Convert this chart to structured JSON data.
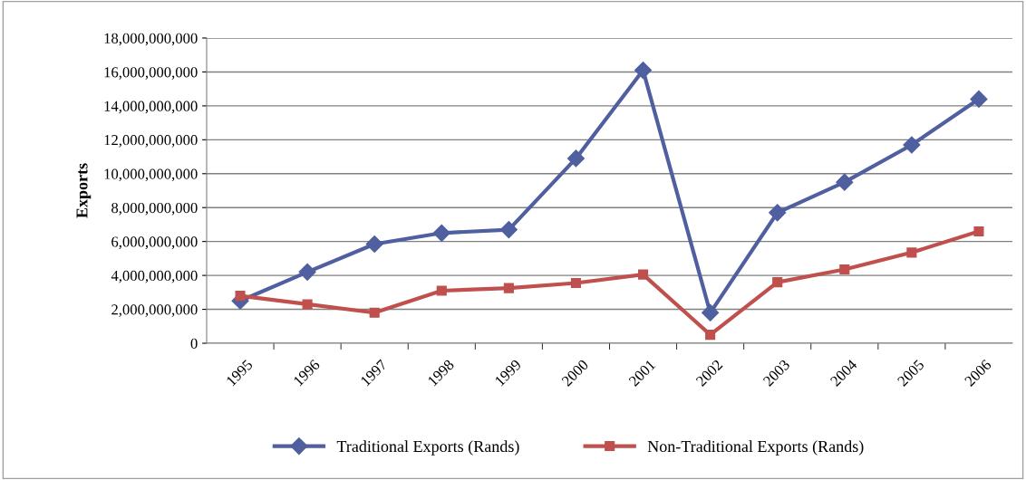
{
  "chart_data": {
    "type": "line",
    "ylabel": "Exports",
    "categories": [
      "1995",
      "1996",
      "1997",
      "1998",
      "1999",
      "2000",
      "2001",
      "2002",
      "2003",
      "2004",
      "2005",
      "2006"
    ],
    "series": [
      {
        "name": "Traditional Exports (Rands)",
        "color": "#4f5f9f",
        "marker": "diamond",
        "values": [
          2500000000,
          4200000000,
          5850000000,
          6500000000,
          6700000000,
          10900000000,
          16100000000,
          1800000000,
          7700000000,
          9500000000,
          11700000000,
          14400000000
        ]
      },
      {
        "name": "Non-Traditional Exports (Rands)",
        "color": "#c0504d",
        "marker": "square",
        "values": [
          2800000000,
          2300000000,
          1800000000,
          3100000000,
          3250000000,
          3550000000,
          4050000000,
          500000000,
          3600000000,
          4350000000,
          5350000000,
          6600000000
        ]
      }
    ],
    "ylim": [
      0,
      18000000000
    ],
    "yticks": [
      {
        "value": 0,
        "label": "0"
      },
      {
        "value": 2000000000,
        "label": "2,000,000,000"
      },
      {
        "value": 4000000000,
        "label": "4,000,000,000"
      },
      {
        "value": 6000000000,
        "label": "6,000,000,000"
      },
      {
        "value": 8000000000,
        "label": "8,000,000,000"
      },
      {
        "value": 10000000000,
        "label": "10,000,000,000"
      },
      {
        "value": 12000000000,
        "label": "12,000,000,000"
      },
      {
        "value": 14000000000,
        "label": "14,000,000,000"
      },
      {
        "value": 16000000000,
        "label": "16,000,000,000"
      },
      {
        "value": 18000000000,
        "label": "18,000,000,000"
      }
    ],
    "grid": "y",
    "legend": "bottom",
    "line_style": "solid"
  }
}
